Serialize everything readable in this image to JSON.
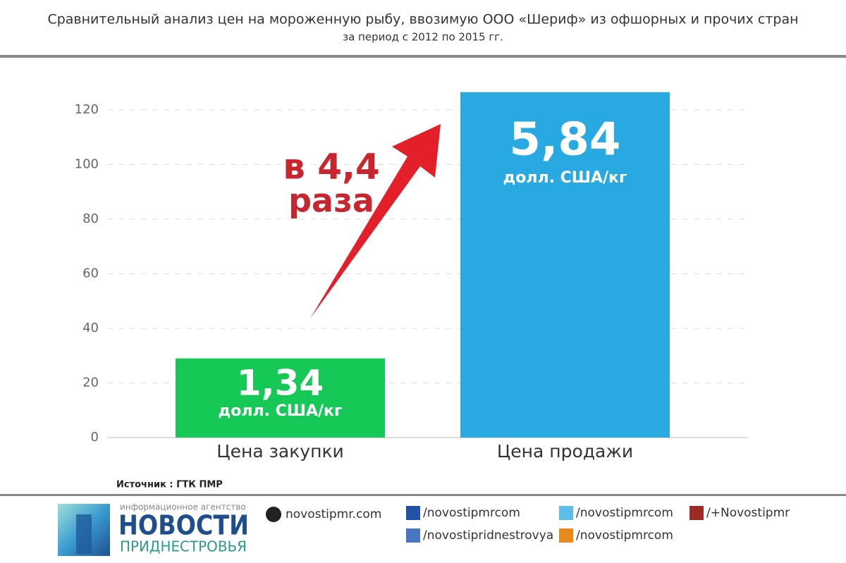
{
  "chart_data": {
    "type": "bar",
    "title": "Сравнительный анализ цен на мороженную рыбу, ввозимую ООО «Шериф» из офшорных и прочих стран",
    "subtitle": "за период с 2012 по 2015 гг.",
    "categories": [
      "Цена закупки",
      "Цена продажи"
    ],
    "values": [
      29,
      126.5
    ],
    "colors": [
      "#16c957",
      "#29a9e1"
    ],
    "bar_labels": [
      {
        "text": "1,34",
        "unit": "долл. США/кг"
      },
      {
        "text": "5,84",
        "unit": "долл. США/кг"
      }
    ],
    "annotations": [
      "в 4,4",
      "раза"
    ],
    "ylim": [
      0,
      130
    ],
    "yticks": [
      0,
      20,
      40,
      60,
      80,
      100,
      120
    ],
    "grid": true,
    "source": "Источник : ГТК ПМР"
  },
  "footer": {
    "brand_caption": "информационное агентство",
    "brand_title": "НОВОСТИ",
    "brand_subtitle": "ПРИДНЕСТРОВЬЯ",
    "links": [
      "novostipmr.com",
      "/novostipmrcom",
      "/novostipridnestrovya",
      "/novostipmrcom",
      "/novostipmrcom",
      "/+Novostipmr"
    ]
  }
}
